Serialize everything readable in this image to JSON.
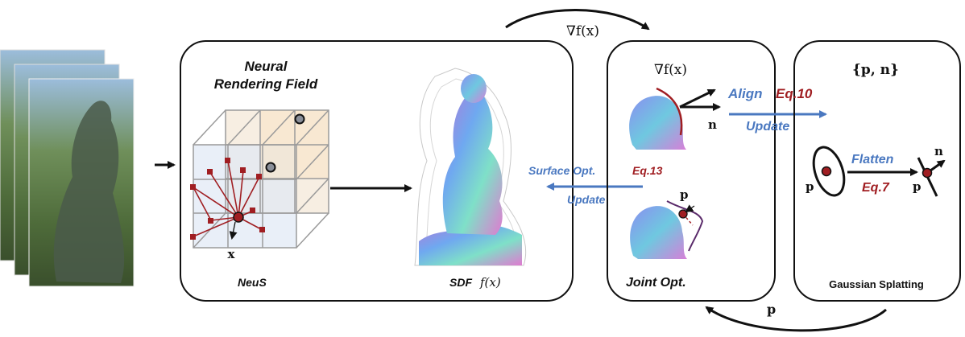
{
  "neural_field": {
    "title_line1": "Neural",
    "title_line2": "Rendering Field",
    "point_label": "x",
    "method": "NeuS",
    "sdf_prefix": "SDF",
    "sdf_func": "f(x)"
  },
  "surface_opt": {
    "label": "Surface Opt.",
    "eq": "Eq.13",
    "update": "Update"
  },
  "top_arrow_label": "∇f(x)",
  "bottom_arrow_label": "p",
  "joint": {
    "grad_label": "∇f(x)",
    "normal_label": "n",
    "point_label": "p",
    "title": "Joint Opt."
  },
  "align": {
    "label": "Align",
    "eq": "Eq.10",
    "update": "Update"
  },
  "gaussian": {
    "set_label": "{p, n}",
    "flatten": "Flatten",
    "eq": "Eq.7",
    "p_left": "p",
    "p_right": "p",
    "n_label": "n",
    "title": "Gaussian Splatting"
  },
  "colors": {
    "blue": "#4a78c0",
    "red": "#a01e22",
    "dark": "#111111"
  }
}
